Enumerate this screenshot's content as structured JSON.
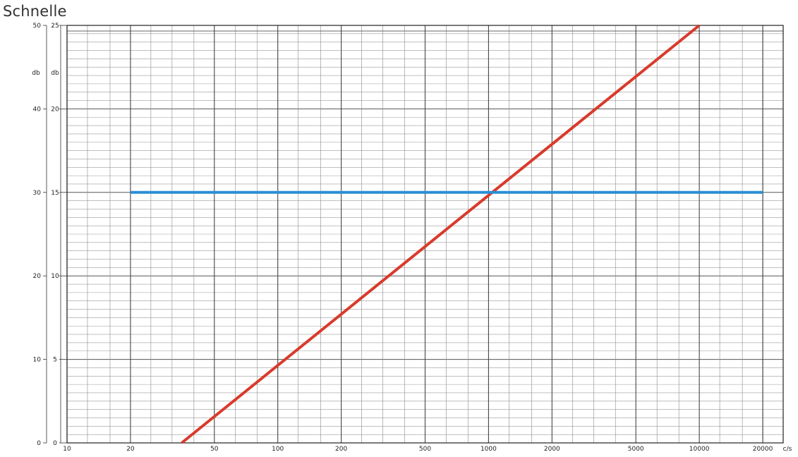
{
  "title": "Schnelle",
  "chart_data": {
    "type": "line",
    "title": "Schnelle",
    "x_scale": "log",
    "xlim": [
      10,
      25000
    ],
    "x_ticks": [
      10,
      20,
      50,
      100,
      200,
      500,
      1000,
      2000,
      5000,
      10000,
      20000
    ],
    "x_tick_labels": [
      "10",
      "20",
      "50",
      "100",
      "200",
      "500",
      "1000",
      "2000",
      "5000",
      "10000",
      "20000"
    ],
    "x_unit": "c/s",
    "y_axes": [
      {
        "unit": "db",
        "ylim": [
          0,
          50
        ],
        "ticks": [
          0,
          10,
          20,
          30,
          40,
          50
        ],
        "tick_labels": [
          "0",
          "10",
          "20",
          "30",
          "40",
          "50"
        ]
      },
      {
        "unit": "db",
        "ylim": [
          0,
          25
        ],
        "ticks": [
          0,
          5,
          10,
          15,
          20,
          25
        ],
        "tick_labels": [
          "0",
          "5",
          "10",
          "15",
          "20",
          "25"
        ]
      }
    ],
    "grid": true,
    "series": [
      {
        "color": "#d93a2b",
        "x": [
          35,
          10000
        ],
        "y": [
          0,
          50
        ]
      },
      {
        "color": "#2a8fd4",
        "x": [
          20,
          20000
        ],
        "y": [
          30,
          30
        ]
      }
    ]
  }
}
